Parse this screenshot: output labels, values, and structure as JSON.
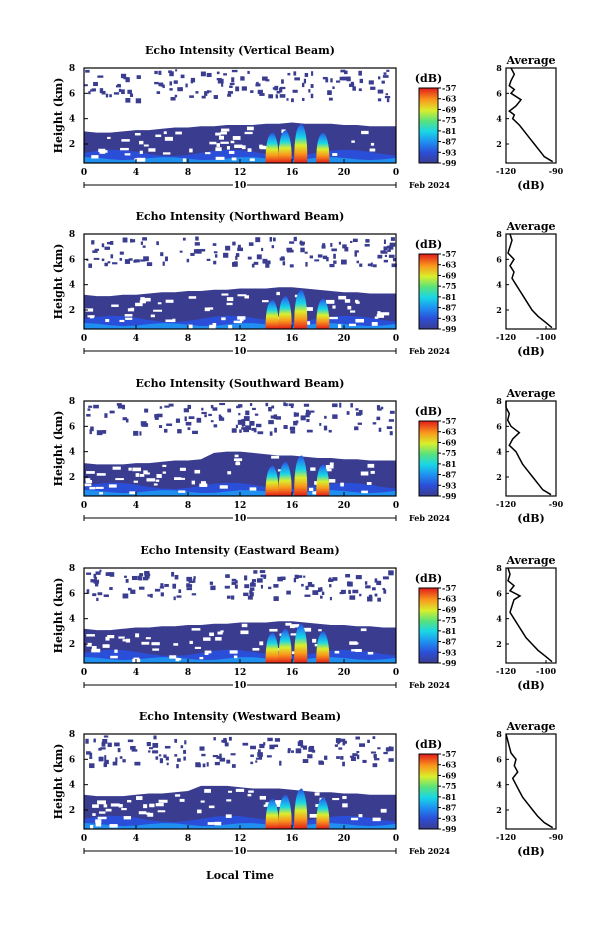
{
  "figure": {
    "xlabel": "Local Time",
    "date_label": "Feb 2024",
    "day_label": "10",
    "profile_title": "Average",
    "profile_xlabel": "(dB)",
    "colorbar_label": "(dB)"
  },
  "chart_data": [
    {
      "type": "heatmap",
      "title": "Echo Intensity (Vertical Beam)",
      "xlabel": "Local Time",
      "ylabel": "Height (km)",
      "xlim": [
        0,
        24
      ],
      "ylim": [
        0.5,
        8
      ],
      "xticks": [
        "0",
        "4",
        "8",
        "12",
        "16",
        "20",
        "0"
      ],
      "yticks": [
        "2",
        "4",
        "6",
        "8"
      ],
      "colorbar": {
        "label": "(dB)",
        "ticks": [
          "-57",
          "-63",
          "-69",
          "-75",
          "-81",
          "-87",
          "-93",
          "-99"
        ],
        "range": [
          -99,
          -57
        ]
      },
      "layer_top_km": [
        3.0,
        2.9,
        2.9,
        3.0,
        3.1,
        3.1,
        3.2,
        3.3,
        3.3,
        3.4,
        3.4,
        3.5,
        3.5,
        3.5,
        3.6,
        3.6,
        3.7,
        3.6,
        3.6,
        3.6,
        3.5,
        3.5,
        3.4,
        3.4,
        3.4
      ],
      "convective_towers": [
        {
          "time": 14.5,
          "top_km": 2.6
        },
        {
          "time": 15.5,
          "top_km": 2.8
        },
        {
          "time": 16.7,
          "top_km": 3.3
        },
        {
          "time": 18.4,
          "top_km": 2.6
        }
      ],
      "profile": {
        "title": "Average",
        "xlabel": "(dB)",
        "xlim": [
          -120,
          -90
        ],
        "xticks": [
          "-120",
          "-90"
        ],
        "ylim": [
          0.5,
          8
        ],
        "yticks": [
          "2",
          "4",
          "6",
          "8"
        ],
        "height_km": [
          0.6,
          1.0,
          1.5,
          2.0,
          2.5,
          3.0,
          3.5,
          4.0,
          4.3,
          4.6,
          5.0,
          5.5,
          6.0,
          6.3,
          6.6,
          7.0,
          7.5,
          8.0
        ],
        "value_db": [
          -92,
          -97,
          -100,
          -103,
          -106,
          -109,
          -112,
          -116,
          -115,
          -118,
          -114,
          -111,
          -117,
          -115,
          -118,
          -117,
          -115,
          -117
        ]
      }
    },
    {
      "type": "heatmap",
      "title": "Echo Intensity (Northward Beam)",
      "xlabel": "Local Time",
      "ylabel": "Height (km)",
      "xlim": [
        0,
        24
      ],
      "ylim": [
        0.5,
        8
      ],
      "xticks": [
        "0",
        "4",
        "8",
        "12",
        "16",
        "20",
        "0"
      ],
      "yticks": [
        "2",
        "4",
        "6",
        "8"
      ],
      "colorbar": {
        "label": "(dB)",
        "ticks": [
          "-57",
          "-63",
          "-69",
          "-75",
          "-81",
          "-87",
          "-93",
          "-99"
        ],
        "range": [
          -99,
          -57
        ]
      },
      "layer_top_km": [
        3.2,
        3.1,
        3.1,
        3.2,
        3.2,
        3.3,
        3.4,
        3.4,
        3.5,
        3.5,
        3.6,
        3.6,
        3.7,
        3.7,
        3.7,
        3.8,
        3.8,
        3.7,
        3.6,
        3.5,
        3.4,
        3.4,
        3.3,
        3.3,
        3.3
      ],
      "convective_towers": [
        {
          "time": 14.5,
          "top_km": 2.5
        },
        {
          "time": 15.5,
          "top_km": 2.8
        },
        {
          "time": 16.7,
          "top_km": 3.3
        },
        {
          "time": 18.4,
          "top_km": 2.6
        }
      ],
      "profile": {
        "title": "Average",
        "xlabel": "(dB)",
        "xlim": [
          -120,
          -95
        ],
        "xticks": [
          "-120",
          "-100"
        ],
        "ylim": [
          0.5,
          8
        ],
        "yticks": [
          "2",
          "4",
          "6",
          "8"
        ],
        "height_km": [
          0.6,
          1.0,
          1.5,
          2.0,
          2.5,
          3.0,
          3.5,
          4.0,
          4.5,
          5.0,
          5.5,
          6.0,
          6.5,
          7.0,
          7.5,
          8.0
        ],
        "value_db": [
          -97,
          -100,
          -104,
          -107,
          -109,
          -111,
          -113,
          -115,
          -117,
          -116,
          -118,
          -116,
          -119,
          -118,
          -117,
          -118
        ]
      }
    },
    {
      "type": "heatmap",
      "title": "Echo Intensity (Southward Beam)",
      "xlabel": "Local Time",
      "ylabel": "Height (km)",
      "xlim": [
        0,
        24
      ],
      "ylim": [
        0.5,
        8
      ],
      "xticks": [
        "0",
        "4",
        "8",
        "12",
        "16",
        "20",
        "0"
      ],
      "yticks": [
        "2",
        "4",
        "6",
        "8"
      ],
      "colorbar": {
        "label": "(dB)",
        "ticks": [
          "-57",
          "-63",
          "-69",
          "-75",
          "-81",
          "-87",
          "-93",
          "-99"
        ],
        "range": [
          -99,
          -57
        ]
      },
      "layer_top_km": [
        3.1,
        3.0,
        3.0,
        3.0,
        3.1,
        3.1,
        3.2,
        3.3,
        3.3,
        3.4,
        3.9,
        4.0,
        4.0,
        3.9,
        3.8,
        3.7,
        3.7,
        3.6,
        3.5,
        3.5,
        3.4,
        3.4,
        3.3,
        3.3,
        3.3
      ],
      "convective_towers": [
        {
          "time": 14.5,
          "top_km": 2.6
        },
        {
          "time": 15.5,
          "top_km": 2.9
        },
        {
          "time": 16.7,
          "top_km": 3.4
        },
        {
          "time": 18.4,
          "top_km": 2.7
        }
      ],
      "profile": {
        "title": "Average",
        "xlabel": "(dB)",
        "xlim": [
          -120,
          -90
        ],
        "xticks": [
          "-120",
          "-90"
        ],
        "ylim": [
          0.5,
          8
        ],
        "yticks": [
          "2",
          "4",
          "6",
          "8"
        ],
        "height_km": [
          0.6,
          1.0,
          1.5,
          2.0,
          2.5,
          3.0,
          3.5,
          4.0,
          4.5,
          5.0,
          5.5,
          6.0,
          6.5,
          7.0,
          7.5,
          8.0
        ],
        "value_db": [
          -93,
          -98,
          -101,
          -104,
          -107,
          -110,
          -112,
          -114,
          -118,
          -116,
          -112,
          -117,
          -119,
          -118,
          -120,
          -121
        ]
      }
    },
    {
      "type": "heatmap",
      "title": "Echo Intensity (Eastward Beam)",
      "xlabel": "Local Time",
      "ylabel": "Height (km)",
      "xlim": [
        0,
        24
      ],
      "ylim": [
        0.5,
        8
      ],
      "xticks": [
        "0",
        "4",
        "8",
        "12",
        "16",
        "20",
        "0"
      ],
      "yticks": [
        "2",
        "4",
        "6",
        "8"
      ],
      "colorbar": {
        "label": "(dB)",
        "ticks": [
          "-57",
          "-63",
          "-69",
          "-75",
          "-81",
          "-87",
          "-93",
          "-99"
        ],
        "range": [
          -99,
          -57
        ]
      },
      "layer_top_km": [
        3.2,
        3.1,
        3.1,
        3.2,
        3.3,
        3.3,
        3.4,
        3.4,
        3.5,
        3.5,
        3.6,
        3.6,
        3.7,
        3.7,
        3.7,
        3.8,
        3.8,
        3.7,
        3.6,
        3.5,
        3.5,
        3.4,
        3.4,
        3.3,
        3.3
      ],
      "convective_towers": [
        {
          "time": 14.5,
          "top_km": 2.6
        },
        {
          "time": 15.5,
          "top_km": 2.9
        },
        {
          "time": 16.7,
          "top_km": 3.3
        },
        {
          "time": 18.4,
          "top_km": 2.7
        }
      ],
      "profile": {
        "title": "Average",
        "xlabel": "(dB)",
        "xlim": [
          -120,
          -95
        ],
        "xticks": [
          "-120",
          "-100"
        ],
        "ylim": [
          0.5,
          8
        ],
        "yticks": [
          "2",
          "4",
          "6",
          "8"
        ],
        "height_km": [
          0.6,
          1.0,
          1.5,
          2.0,
          2.5,
          3.0,
          3.5,
          4.0,
          4.5,
          5.0,
          5.5,
          5.8,
          6.2,
          6.6,
          7.0,
          7.5,
          8.0
        ],
        "value_db": [
          -97,
          -100,
          -104,
          -107,
          -110,
          -112,
          -114,
          -116,
          -118,
          -117,
          -116,
          -113,
          -118,
          -116,
          -119,
          -118,
          -119
        ]
      }
    },
    {
      "type": "heatmap",
      "title": "Echo Intensity (Westward Beam)",
      "xlabel": "Local Time",
      "ylabel": "Height (km)",
      "xlim": [
        0,
        24
      ],
      "ylim": [
        0.5,
        8
      ],
      "xticks": [
        "0",
        "4",
        "8",
        "12",
        "16",
        "20",
        "0"
      ],
      "yticks": [
        "2",
        "4",
        "6",
        "8"
      ],
      "colorbar": {
        "label": "(dB)",
        "ticks": [
          "-57",
          "-63",
          "-69",
          "-75",
          "-81",
          "-87",
          "-93",
          "-99"
        ],
        "range": [
          -99,
          -57
        ]
      },
      "layer_top_km": [
        3.2,
        3.1,
        3.1,
        3.1,
        3.2,
        3.3,
        3.3,
        3.4,
        3.5,
        3.9,
        3.9,
        3.9,
        3.8,
        3.7,
        3.7,
        3.7,
        3.6,
        3.5,
        3.4,
        3.4,
        3.3,
        3.3,
        3.2,
        3.2,
        3.2
      ],
      "convective_towers": [
        {
          "time": 14.5,
          "top_km": 2.6
        },
        {
          "time": 15.5,
          "top_km": 2.9
        },
        {
          "time": 16.7,
          "top_km": 3.4
        },
        {
          "time": 18.4,
          "top_km": 2.7
        }
      ],
      "profile": {
        "title": "Average",
        "xlabel": "(dB)",
        "xlim": [
          -120,
          -90
        ],
        "xticks": [
          "-120",
          "-90"
        ],
        "ylim": [
          0.5,
          8
        ],
        "yticks": [
          "2",
          "4",
          "6",
          "8"
        ],
        "height_km": [
          0.6,
          1.0,
          1.5,
          2.0,
          2.5,
          3.0,
          3.5,
          4.0,
          4.5,
          5.0,
          5.5,
          6.0,
          6.5,
          7.0,
          7.5,
          8.0
        ],
        "value_db": [
          -92,
          -97,
          -101,
          -104,
          -107,
          -110,
          -112,
          -114,
          -116,
          -113,
          -115,
          -114,
          -117,
          -118,
          -119,
          -120
        ]
      }
    }
  ]
}
